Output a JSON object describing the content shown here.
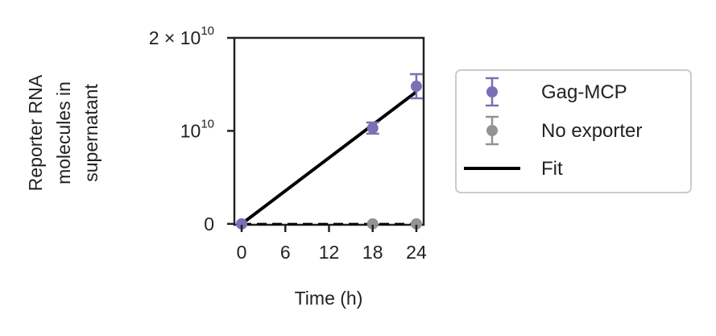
{
  "chart_data": {
    "type": "scatter",
    "xlabel": "Time (h)",
    "ylabel": [
      "Reporter RNA",
      "molecules in",
      "supernatant"
    ],
    "xlim": [
      -1,
      25
    ],
    "ylim": [
      -100000000.0,
      20000000000.0
    ],
    "x_ticks": [
      0,
      6,
      12,
      18,
      24
    ],
    "x_tick_labels": [
      "0",
      "6",
      "12",
      "18",
      "24"
    ],
    "y_ticks": [
      {
        "value": 0,
        "base": "0",
        "exponent": ""
      },
      {
        "value": 10000000000.0,
        "base": "10",
        "exponent": "10"
      },
      {
        "value": 20000000000.0,
        "base": "2 × 10",
        "exponent": "10"
      }
    ],
    "grid": false,
    "legend_position": "right",
    "series": [
      {
        "name": "Gag-MCP",
        "kind": "errorbar",
        "color": "#7b6fb6",
        "points": [
          {
            "x": 0,
            "y": 0,
            "err": 0
          },
          {
            "x": 18,
            "y": 10300000000.0,
            "err": 600000000.0
          },
          {
            "x": 24,
            "y": 14800000000.0,
            "err": 1300000000.0
          }
        ]
      },
      {
        "name": "No exporter",
        "kind": "errorbar",
        "color": "#939393",
        "points": [
          {
            "x": 0,
            "y": 0,
            "err": 0
          },
          {
            "x": 18,
            "y": 0,
            "err": 0
          },
          {
            "x": 24,
            "y": 0,
            "err": 0
          }
        ]
      },
      {
        "name": "Fit",
        "kind": "line",
        "color": "#000000",
        "style": "solid",
        "x": [
          0,
          24
        ],
        "y": [
          0,
          14200000000.0
        ]
      },
      {
        "kind": "line",
        "color": "#000000",
        "style": "dashed",
        "x": [
          0,
          24
        ],
        "y": [
          0,
          0
        ]
      }
    ]
  }
}
